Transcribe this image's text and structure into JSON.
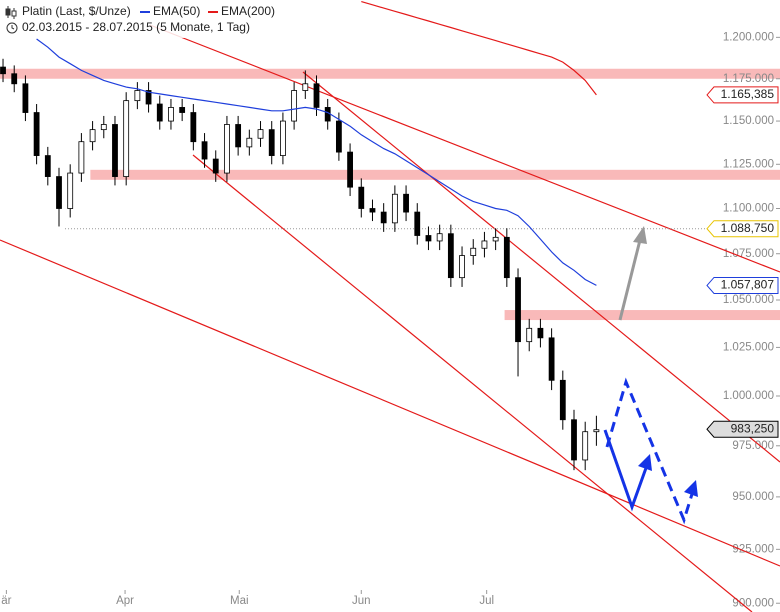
{
  "chart_data": {
    "type": "candlestick",
    "title": "Platin (Last, $/Unze)",
    "subtitle": "02.03.2015 - 28.07.2015 (5 Monate, 1 Tag)",
    "log_scale": true,
    "ylim": [
      896,
      1223
    ],
    "yticks": [
      {
        "value": 900,
        "label": "900.000"
      },
      {
        "value": 925,
        "label": "925.000"
      },
      {
        "value": 950,
        "label": "950.000"
      },
      {
        "value": 975,
        "label": "975.000"
      },
      {
        "value": 1000,
        "label": "1.000.000"
      },
      {
        "value": 1025,
        "label": "1.025.000"
      },
      {
        "value": 1050,
        "label": "1.050.000"
      },
      {
        "value": 1075,
        "label": "1.075.000"
      },
      {
        "value": 1100,
        "label": "1.100.000"
      },
      {
        "value": 1125,
        "label": "1.125.000"
      },
      {
        "value": 1150,
        "label": "1.150.000"
      },
      {
        "value": 1175,
        "label": "1.175.000"
      },
      {
        "value": 1200,
        "label": "1.200.000"
      }
    ],
    "xlim": [
      -0.27,
      69.4
    ],
    "xticks": [
      {
        "value": 0.3,
        "label": "är"
      },
      {
        "value": 10.9,
        "label": "Apr"
      },
      {
        "value": 21.1,
        "label": "Mai"
      },
      {
        "value": 32,
        "label": "Jun"
      },
      {
        "value": 43.2,
        "label": "Jul"
      }
    ],
    "open": [
      1182,
      1178,
      1172,
      1155,
      1130,
      1118,
      1100,
      1120,
      1138,
      1145,
      1148,
      1118,
      1162,
      1168,
      1160,
      1150,
      1158,
      1155,
      1138,
      1128,
      1120,
      1148,
      1135,
      1140,
      1145,
      1130,
      1150,
      1168,
      1172,
      1158,
      1150,
      1132,
      1112,
      1100,
      1098,
      1092,
      1108,
      1098,
      1085,
      1082,
      1086,
      1062,
      1074,
      1078,
      1082,
      1084,
      1062,
      1028,
      1035,
      1030,
      1008,
      988,
      968,
      982
    ],
    "high": [
      1187,
      1183,
      1177,
      1160,
      1135,
      1123,
      1125,
      1143,
      1150,
      1153,
      1153,
      1167,
      1173,
      1173,
      1165,
      1163,
      1163,
      1160,
      1143,
      1133,
      1153,
      1153,
      1145,
      1150,
      1150,
      1155,
      1173,
      1180,
      1177,
      1163,
      1155,
      1137,
      1117,
      1105,
      1103,
      1113,
      1113,
      1103,
      1090,
      1091,
      1091,
      1079,
      1083,
      1087,
      1089,
      1089,
      1067,
      1040,
      1040,
      1035,
      1013,
      993,
      987,
      990
    ],
    "low": [
      1173,
      1167,
      1150,
      1125,
      1113,
      1090,
      1095,
      1115,
      1133,
      1140,
      1113,
      1113,
      1157,
      1155,
      1145,
      1145,
      1150,
      1133,
      1123,
      1115,
      1115,
      1130,
      1130,
      1135,
      1125,
      1125,
      1145,
      1163,
      1153,
      1145,
      1127,
      1107,
      1095,
      1093,
      1087,
      1087,
      1093,
      1080,
      1077,
      1077,
      1057,
      1057,
      1069,
      1073,
      1077,
      1057,
      1010,
      1023,
      1025,
      1003,
      983,
      963,
      963,
      975
    ],
    "close": [
      1178,
      1172,
      1155,
      1130,
      1118,
      1100,
      1120,
      1138,
      1145,
      1148,
      1118,
      1162,
      1168,
      1160,
      1150,
      1158,
      1155,
      1138,
      1128,
      1120,
      1148,
      1135,
      1140,
      1145,
      1130,
      1150,
      1168,
      1172,
      1158,
      1150,
      1132,
      1112,
      1100,
      1098,
      1092,
      1108,
      1098,
      1085,
      1082,
      1086,
      1062,
      1074,
      1078,
      1082,
      1084,
      1062,
      1028,
      1035,
      1030,
      1008,
      988,
      968,
      982,
      983
    ],
    "up_color": "#ffffff",
    "down_color": "#000000",
    "series": [
      {
        "name": "EMA(50)",
        "color": "#1f3fdc",
        "values": [
          null,
          null,
          null,
          1199,
          1194,
          1188,
          1184,
          1180,
          1177,
          1174,
          1172,
          1170,
          1169,
          1167,
          1166,
          1165,
          1164,
          1163,
          1162,
          1161,
          1160,
          1159,
          1158,
          1157,
          1156,
          1156,
          1157,
          1158,
          1157,
          1155,
          1151,
          1147,
          1142,
          1138,
          1134,
          1131,
          1127,
          1123,
          1119,
          1115,
          1111,
          1107,
          1104,
          1102,
          1100,
          1099,
          1096,
          1090,
          1083,
          1076,
          1070,
          1066,
          1061,
          1057.807
        ]
      },
      {
        "name": "EMA(200)",
        "color": "#e41a1a",
        "values": [
          null,
          null,
          null,
          null,
          null,
          null,
          null,
          null,
          null,
          null,
          null,
          null,
          null,
          null,
          null,
          null,
          null,
          null,
          null,
          null,
          null,
          null,
          null,
          null,
          null,
          null,
          null,
          null,
          null,
          null,
          null,
          null,
          1222,
          1220,
          1218,
          1216,
          1214,
          1212,
          1210,
          1208,
          1206,
          1204,
          1202,
          1200,
          1198,
          1196,
          1194,
          1192,
          1190,
          1188,
          1185,
          1180,
          1174,
          1165.385
        ]
      }
    ],
    "zones": [
      {
        "value": 1178,
        "start": -0.27
      },
      {
        "value": 1119,
        "start": 7.8
      },
      {
        "value": 1042,
        "start": 44.8
      }
    ],
    "zone_color": "#f9b9b9",
    "price_labels": [
      {
        "value": 1165.385,
        "label": "1.165,385",
        "color": "#e41a1a"
      },
      {
        "value": 1088.75,
        "label": "1.088,750",
        "color": "#e8c400"
      },
      {
        "value": 1057.807,
        "label": "1.057,807",
        "color": "#1f3fdc"
      },
      {
        "value": 983.25,
        "label": "983,250",
        "color": "#000000"
      }
    ]
  }
}
